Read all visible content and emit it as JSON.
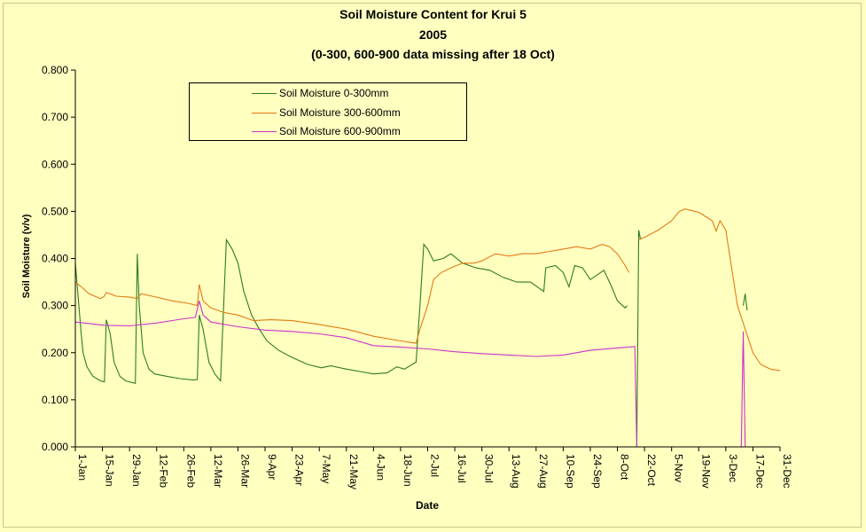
{
  "chart_data": {
    "type": "line",
    "title": "Soil Moisture Content for Krui 5",
    "subtitle_1": "2005",
    "subtitle_2": "(0-300, 600-900 data missing after 18 Oct)",
    "xlabel": "Date",
    "ylabel": "Soil Moisture (v/v)",
    "ylim": [
      0,
      0.8
    ],
    "yticks": [
      "0.000",
      "0.100",
      "0.200",
      "0.300",
      "0.400",
      "0.500",
      "0.600",
      "0.700",
      "0.800"
    ],
    "xlim": [
      "2005-01-01",
      "2005-12-31"
    ],
    "xticks": [
      {
        "date": "2005-01-01",
        "label": "1-Jan"
      },
      {
        "date": "2005-01-15",
        "label": "15-Jan"
      },
      {
        "date": "2005-01-29",
        "label": "29-Jan"
      },
      {
        "date": "2005-02-12",
        "label": "12-Feb"
      },
      {
        "date": "2005-02-26",
        "label": "26-Feb"
      },
      {
        "date": "2005-03-12",
        "label": "12-Mar"
      },
      {
        "date": "2005-03-26",
        "label": "26-Mar"
      },
      {
        "date": "2005-04-09",
        "label": "9-Apr"
      },
      {
        "date": "2005-04-23",
        "label": "23-Apr"
      },
      {
        "date": "2005-05-07",
        "label": "7-May"
      },
      {
        "date": "2005-05-21",
        "label": "21-May"
      },
      {
        "date": "2005-06-04",
        "label": "4-Jun"
      },
      {
        "date": "2005-06-18",
        "label": "18-Jun"
      },
      {
        "date": "2005-07-02",
        "label": "2-Jul"
      },
      {
        "date": "2005-07-16",
        "label": "16-Jul"
      },
      {
        "date": "2005-07-30",
        "label": "30-Jul"
      },
      {
        "date": "2005-08-13",
        "label": "13-Aug"
      },
      {
        "date": "2005-08-27",
        "label": "27-Aug"
      },
      {
        "date": "2005-09-10",
        "label": "10-Sep"
      },
      {
        "date": "2005-09-24",
        "label": "24-Sep"
      },
      {
        "date": "2005-10-08",
        "label": "8-Oct"
      },
      {
        "date": "2005-10-22",
        "label": "22-Oct"
      },
      {
        "date": "2005-11-05",
        "label": "5-Nov"
      },
      {
        "date": "2005-11-19",
        "label": "19-Nov"
      },
      {
        "date": "2005-12-03",
        "label": "3-Dec"
      },
      {
        "date": "2005-12-17",
        "label": "17-Dec"
      },
      {
        "date": "2005-12-31",
        "label": "31-Dec"
      }
    ],
    "grid": false,
    "legend_position": "top-left",
    "plot_background": "#ffffc0",
    "series": [
      {
        "name": "Soil Moisture 0-300mm",
        "color": "#2e7d1e",
        "points": [
          [
            "2005-01-01",
            0.39
          ],
          [
            "2005-01-02",
            0.34
          ],
          [
            "2005-01-03",
            0.29
          ],
          [
            "2005-01-04",
            0.24
          ],
          [
            "2005-01-05",
            0.2
          ],
          [
            "2005-01-07",
            0.17
          ],
          [
            "2005-01-10",
            0.15
          ],
          [
            "2005-01-14",
            0.14
          ],
          [
            "2005-01-16",
            0.138
          ],
          [
            "2005-01-17",
            0.27
          ],
          [
            "2005-01-19",
            0.24
          ],
          [
            "2005-01-21",
            0.18
          ],
          [
            "2005-01-24",
            0.15
          ],
          [
            "2005-01-27",
            0.14
          ],
          [
            "2005-02-01",
            0.135
          ],
          [
            "2005-02-02",
            0.41
          ],
          [
            "2005-02-03",
            0.3
          ],
          [
            "2005-02-05",
            0.2
          ],
          [
            "2005-02-08",
            0.165
          ],
          [
            "2005-02-11",
            0.155
          ],
          [
            "2005-02-17",
            0.15
          ],
          [
            "2005-02-24",
            0.145
          ],
          [
            "2005-03-03",
            0.142
          ],
          [
            "2005-03-05",
            0.143
          ],
          [
            "2005-03-06",
            0.28
          ],
          [
            "2005-03-08",
            0.25
          ],
          [
            "2005-03-11",
            0.18
          ],
          [
            "2005-03-14",
            0.155
          ],
          [
            "2005-03-17",
            0.14
          ],
          [
            "2005-03-20",
            0.44
          ],
          [
            "2005-03-23",
            0.42
          ],
          [
            "2005-03-26",
            0.39
          ],
          [
            "2005-03-29",
            0.33
          ],
          [
            "2005-04-02",
            0.28
          ],
          [
            "2005-04-06",
            0.25
          ],
          [
            "2005-04-10",
            0.225
          ],
          [
            "2005-04-16",
            0.205
          ],
          [
            "2005-04-23",
            0.19
          ],
          [
            "2005-05-01",
            0.175
          ],
          [
            "2005-05-08",
            0.168
          ],
          [
            "2005-05-13",
            0.172
          ],
          [
            "2005-05-21",
            0.165
          ],
          [
            "2005-05-28",
            0.16
          ],
          [
            "2005-06-04",
            0.155
          ],
          [
            "2005-06-11",
            0.157
          ],
          [
            "2005-06-16",
            0.17
          ],
          [
            "2005-06-20",
            0.165
          ],
          [
            "2005-06-26",
            0.18
          ],
          [
            "2005-06-28",
            0.3
          ],
          [
            "2005-06-30",
            0.43
          ],
          [
            "2005-07-02",
            0.42
          ],
          [
            "2005-07-05",
            0.395
          ],
          [
            "2005-07-10",
            0.4
          ],
          [
            "2005-07-14",
            0.41
          ],
          [
            "2005-07-20",
            0.39
          ],
          [
            "2005-07-27",
            0.38
          ],
          [
            "2005-08-03",
            0.375
          ],
          [
            "2005-08-10",
            0.36
          ],
          [
            "2005-08-17",
            0.35
          ],
          [
            "2005-08-24",
            0.35
          ],
          [
            "2005-08-31",
            0.33
          ],
          [
            "2005-09-01",
            0.38
          ],
          [
            "2005-09-06",
            0.385
          ],
          [
            "2005-09-10",
            0.37
          ],
          [
            "2005-09-13",
            0.34
          ],
          [
            "2005-09-16",
            0.385
          ],
          [
            "2005-09-20",
            0.38
          ],
          [
            "2005-09-24",
            0.355
          ],
          [
            "2005-10-01",
            0.375
          ],
          [
            "2005-10-05",
            0.34
          ],
          [
            "2005-10-08",
            0.31
          ],
          [
            "2005-10-12",
            0.295
          ],
          [
            "2005-10-13",
            0.3
          ],
          [
            "2005-10-17",
            null
          ],
          [
            "2005-10-18",
            0.0
          ],
          [
            "2005-10-19",
            0.46
          ],
          [
            "2005-10-20",
            0.44
          ],
          [
            "2005-12-11",
            null
          ],
          [
            "2005-12-12",
            0.3
          ],
          [
            "2005-12-13",
            0.325
          ],
          [
            "2005-12-14",
            0.29
          ]
        ]
      },
      {
        "name": "Soil Moisture 300-600mm",
        "color": "#e37b16",
        "points": [
          [
            "2005-01-01",
            0.35
          ],
          [
            "2005-01-04",
            0.34
          ],
          [
            "2005-01-08",
            0.325
          ],
          [
            "2005-01-14",
            0.315
          ],
          [
            "2005-01-16",
            0.32
          ],
          [
            "2005-01-17",
            0.328
          ],
          [
            "2005-01-22",
            0.32
          ],
          [
            "2005-01-29",
            0.318
          ],
          [
            "2005-02-02",
            0.315
          ],
          [
            "2005-02-04",
            0.325
          ],
          [
            "2005-02-12",
            0.318
          ],
          [
            "2005-02-20",
            0.31
          ],
          [
            "2005-02-28",
            0.305
          ],
          [
            "2005-03-05",
            0.3
          ],
          [
            "2005-03-06",
            0.345
          ],
          [
            "2005-03-08",
            0.31
          ],
          [
            "2005-03-12",
            0.295
          ],
          [
            "2005-03-19",
            0.285
          ],
          [
            "2005-03-26",
            0.28
          ],
          [
            "2005-04-03",
            0.268
          ],
          [
            "2005-04-12",
            0.27
          ],
          [
            "2005-04-23",
            0.268
          ],
          [
            "2005-05-07",
            0.26
          ],
          [
            "2005-05-21",
            0.25
          ],
          [
            "2005-06-04",
            0.235
          ],
          [
            "2005-06-18",
            0.225
          ],
          [
            "2005-06-26",
            0.22
          ],
          [
            "2005-06-28",
            0.25
          ],
          [
            "2005-07-02",
            0.3
          ],
          [
            "2005-07-05",
            0.355
          ],
          [
            "2005-07-09",
            0.37
          ],
          [
            "2005-07-14",
            0.38
          ],
          [
            "2005-07-20",
            0.39
          ],
          [
            "2005-07-26",
            0.39
          ],
          [
            "2005-07-30",
            0.395
          ],
          [
            "2005-08-06",
            0.41
          ],
          [
            "2005-08-13",
            0.405
          ],
          [
            "2005-08-20",
            0.41
          ],
          [
            "2005-08-27",
            0.41
          ],
          [
            "2005-09-03",
            0.415
          ],
          [
            "2005-09-10",
            0.42
          ],
          [
            "2005-09-17",
            0.425
          ],
          [
            "2005-09-24",
            0.42
          ],
          [
            "2005-09-30",
            0.43
          ],
          [
            "2005-10-04",
            0.425
          ],
          [
            "2005-10-08",
            0.41
          ],
          [
            "2005-10-12",
            0.385
          ],
          [
            "2005-10-14",
            0.37
          ],
          [
            "2005-10-17",
            null
          ],
          [
            "2005-10-19",
            0.44
          ],
          [
            "2005-10-22",
            0.445
          ],
          [
            "2005-10-29",
            0.46
          ],
          [
            "2005-11-05",
            0.48
          ],
          [
            "2005-11-09",
            0.5
          ],
          [
            "2005-11-12",
            0.505
          ],
          [
            "2005-11-19",
            0.498
          ],
          [
            "2005-11-26",
            0.48
          ],
          [
            "2005-11-28",
            0.458
          ],
          [
            "2005-11-30",
            0.48
          ],
          [
            "2005-12-03",
            0.46
          ],
          [
            "2005-12-06",
            0.38
          ],
          [
            "2005-12-09",
            0.3
          ],
          [
            "2005-12-13",
            0.25
          ],
          [
            "2005-12-17",
            0.2
          ],
          [
            "2005-12-21",
            0.175
          ],
          [
            "2005-12-26",
            0.165
          ],
          [
            "2005-12-31",
            0.162
          ]
        ]
      },
      {
        "name": "Soil Moisture 600-900mm",
        "color": "#cc33cc",
        "points": [
          [
            "2005-01-01",
            0.265
          ],
          [
            "2005-01-08",
            0.262
          ],
          [
            "2005-01-16",
            0.258
          ],
          [
            "2005-01-29",
            0.257
          ],
          [
            "2005-02-12",
            0.263
          ],
          [
            "2005-02-26",
            0.272
          ],
          [
            "2005-03-04",
            0.275
          ],
          [
            "2005-03-06",
            0.31
          ],
          [
            "2005-03-08",
            0.28
          ],
          [
            "2005-03-12",
            0.265
          ],
          [
            "2005-03-26",
            0.255
          ],
          [
            "2005-04-09",
            0.248
          ],
          [
            "2005-04-23",
            0.245
          ],
          [
            "2005-05-07",
            0.24
          ],
          [
            "2005-05-21",
            0.232
          ],
          [
            "2005-06-04",
            0.215
          ],
          [
            "2005-06-18",
            0.212
          ],
          [
            "2005-07-02",
            0.208
          ],
          [
            "2005-07-16",
            0.202
          ],
          [
            "2005-07-30",
            0.198
          ],
          [
            "2005-08-13",
            0.195
          ],
          [
            "2005-08-27",
            0.192
          ],
          [
            "2005-09-10",
            0.195
          ],
          [
            "2005-09-24",
            0.205
          ],
          [
            "2005-10-08",
            0.21
          ],
          [
            "2005-10-17",
            0.213
          ],
          [
            "2005-10-18",
            0.0
          ],
          [
            "2005-10-19",
            null
          ],
          [
            "2005-12-11",
            0.0
          ],
          [
            "2005-12-12",
            0.245
          ],
          [
            "2005-12-13",
            0.0
          ]
        ]
      }
    ]
  }
}
